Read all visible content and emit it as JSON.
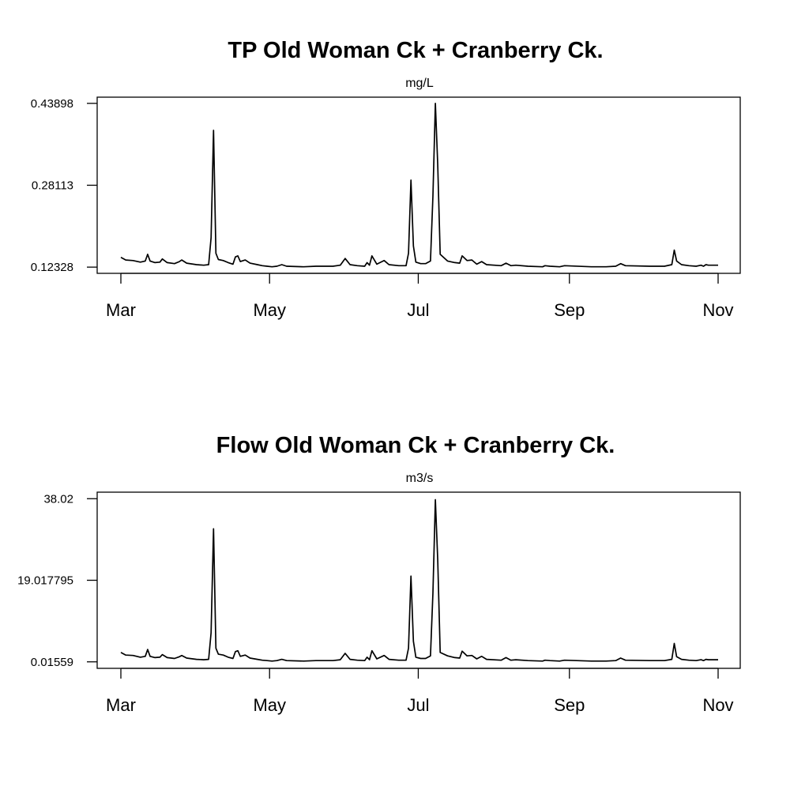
{
  "chart_data": [
    {
      "type": "line",
      "title": "TP Old Woman Ck + Cranberry Ck.",
      "subtitle": "mg/L",
      "xlabel": "",
      "ylabel": "",
      "x_axis": "date",
      "xlim": [
        "2020-03-01",
        "2020-11-01"
      ],
      "xticks": [
        {
          "date": "2020-03-01",
          "label": "Mar"
        },
        {
          "date": "2020-05-01",
          "label": "May"
        },
        {
          "date": "2020-07-01",
          "label": "Jul"
        },
        {
          "date": "2020-09-01",
          "label": "Sep"
        },
        {
          "date": "2020-11-01",
          "label": "Nov"
        }
      ],
      "yticks": [
        {
          "value": 0.12328,
          "label": "0.12328"
        },
        {
          "value": 0.28113,
          "label": "0.28113"
        },
        {
          "value": 0.43898,
          "label": "0.43898"
        }
      ],
      "ylim": [
        0.1113,
        0.4509
      ],
      "grid": false,
      "series": [
        {
          "color": "#000000",
          "points": [
            [
              "2020-03-01",
              0.142
            ],
            [
              "2020-03-03",
              0.137
            ],
            [
              "2020-03-06",
              0.136
            ],
            [
              "2020-03-09",
              0.133
            ],
            [
              "2020-03-11",
              0.135
            ],
            [
              "2020-03-12",
              0.148
            ],
            [
              "2020-03-13",
              0.135
            ],
            [
              "2020-03-15",
              0.132
            ],
            [
              "2020-03-17",
              0.133
            ],
            [
              "2020-03-18",
              0.139
            ],
            [
              "2020-03-20",
              0.132
            ],
            [
              "2020-03-23",
              0.13
            ],
            [
              "2020-03-25",
              0.134
            ],
            [
              "2020-03-26",
              0.137
            ],
            [
              "2020-03-28",
              0.131
            ],
            [
              "2020-04-01",
              0.128
            ],
            [
              "2020-04-04",
              0.127
            ],
            [
              "2020-04-06",
              0.128
            ],
            [
              "2020-04-07",
              0.18
            ],
            [
              "2020-04-08",
              0.387
            ],
            [
              "2020-04-09",
              0.15
            ],
            [
              "2020-04-10",
              0.138
            ],
            [
              "2020-04-12",
              0.136
            ],
            [
              "2020-04-14",
              0.132
            ],
            [
              "2020-04-16",
              0.129
            ],
            [
              "2020-04-17",
              0.143
            ],
            [
              "2020-04-18",
              0.145
            ],
            [
              "2020-04-19",
              0.134
            ],
            [
              "2020-04-21",
              0.137
            ],
            [
              "2020-04-23",
              0.131
            ],
            [
              "2020-04-26",
              0.128
            ],
            [
              "2020-04-28",
              0.126
            ],
            [
              "2020-04-30",
              0.125
            ],
            [
              "2020-05-02",
              0.124
            ],
            [
              "2020-05-04",
              0.125
            ],
            [
              "2020-05-06",
              0.128
            ],
            [
              "2020-05-08",
              0.125
            ],
            [
              "2020-05-15",
              0.124
            ],
            [
              "2020-05-20",
              0.125
            ],
            [
              "2020-05-27",
              0.125
            ],
            [
              "2020-05-30",
              0.127
            ],
            [
              "2020-06-01",
              0.14
            ],
            [
              "2020-06-03",
              0.128
            ],
            [
              "2020-06-06",
              0.126
            ],
            [
              "2020-06-09",
              0.125
            ],
            [
              "2020-06-10",
              0.132
            ],
            [
              "2020-06-11",
              0.127
            ],
            [
              "2020-06-12",
              0.145
            ],
            [
              "2020-06-14",
              0.129
            ],
            [
              "2020-06-17",
              0.136
            ],
            [
              "2020-06-19",
              0.128
            ],
            [
              "2020-06-23",
              0.126
            ],
            [
              "2020-06-26",
              0.126
            ],
            [
              "2020-06-27",
              0.15
            ],
            [
              "2020-06-28",
              0.291
            ],
            [
              "2020-06-29",
              0.164
            ],
            [
              "2020-06-30",
              0.133
            ],
            [
              "2020-07-02",
              0.13
            ],
            [
              "2020-07-04",
              0.13
            ],
            [
              "2020-07-06",
              0.135
            ],
            [
              "2020-07-07",
              0.26
            ],
            [
              "2020-07-08",
              0.439
            ],
            [
              "2020-07-09",
              0.32
            ],
            [
              "2020-07-10",
              0.148
            ],
            [
              "2020-07-13",
              0.135
            ],
            [
              "2020-07-16",
              0.132
            ],
            [
              "2020-07-18",
              0.131
            ],
            [
              "2020-07-19",
              0.145
            ],
            [
              "2020-07-21",
              0.136
            ],
            [
              "2020-07-23",
              0.137
            ],
            [
              "2020-07-25",
              0.129
            ],
            [
              "2020-07-27",
              0.134
            ],
            [
              "2020-07-29",
              0.128
            ],
            [
              "2020-08-04",
              0.126
            ],
            [
              "2020-08-06",
              0.131
            ],
            [
              "2020-08-08",
              0.126
            ],
            [
              "2020-08-10",
              0.127
            ],
            [
              "2020-08-15",
              0.125
            ],
            [
              "2020-08-21",
              0.124
            ],
            [
              "2020-08-22",
              0.126
            ],
            [
              "2020-08-24",
              0.125
            ],
            [
              "2020-08-28",
              0.124
            ],
            [
              "2020-08-30",
              0.126
            ],
            [
              "2020-09-10",
              0.124
            ],
            [
              "2020-09-16",
              0.124
            ],
            [
              "2020-09-20",
              0.125
            ],
            [
              "2020-09-22",
              0.13
            ],
            [
              "2020-09-24",
              0.126
            ],
            [
              "2020-10-04",
              0.125
            ],
            [
              "2020-10-10",
              0.125
            ],
            [
              "2020-10-13",
              0.128
            ],
            [
              "2020-10-14",
              0.156
            ],
            [
              "2020-10-15",
              0.135
            ],
            [
              "2020-10-17",
              0.128
            ],
            [
              "2020-10-20",
              0.126
            ],
            [
              "2020-10-23",
              0.125
            ],
            [
              "2020-10-25",
              0.127
            ],
            [
              "2020-10-26",
              0.125
            ],
            [
              "2020-10-27",
              0.128
            ],
            [
              "2020-10-28",
              0.127
            ],
            [
              "2020-11-01",
              0.127
            ]
          ]
        }
      ]
    },
    {
      "type": "line",
      "title": "Flow Old Woman Ck + Cranberry Ck.",
      "subtitle": "m3/s",
      "xlabel": "",
      "ylabel": "",
      "x_axis": "date",
      "xlim": [
        "2020-03-01",
        "2020-11-01"
      ],
      "xticks": [
        {
          "date": "2020-03-01",
          "label": "Mar"
        },
        {
          "date": "2020-05-01",
          "label": "May"
        },
        {
          "date": "2020-07-01",
          "label": "Jul"
        },
        {
          "date": "2020-09-01",
          "label": "Sep"
        },
        {
          "date": "2020-11-01",
          "label": "Nov"
        }
      ],
      "yticks": [
        {
          "value": 0.01559,
          "label": "0.01559"
        },
        {
          "value": 19.017795,
          "label": "19.017795"
        },
        {
          "value": 38.02,
          "label": "38.02"
        }
      ],
      "ylim": [
        -1.5,
        39.54
      ],
      "grid": false,
      "series": [
        {
          "color": "#000000",
          "points": [
            [
              "2020-03-01",
              2.2
            ],
            [
              "2020-03-03",
              1.6
            ],
            [
              "2020-03-06",
              1.5
            ],
            [
              "2020-03-09",
              1.1
            ],
            [
              "2020-03-11",
              1.3
            ],
            [
              "2020-03-12",
              2.9
            ],
            [
              "2020-03-13",
              1.3
            ],
            [
              "2020-03-15",
              1.0
            ],
            [
              "2020-03-17",
              1.1
            ],
            [
              "2020-03-18",
              1.7
            ],
            [
              "2020-03-20",
              1.0
            ],
            [
              "2020-03-23",
              0.8
            ],
            [
              "2020-03-25",
              1.2
            ],
            [
              "2020-03-26",
              1.5
            ],
            [
              "2020-03-28",
              0.9
            ],
            [
              "2020-04-01",
              0.6
            ],
            [
              "2020-04-04",
              0.5
            ],
            [
              "2020-04-06",
              0.6
            ],
            [
              "2020-04-07",
              6.8
            ],
            [
              "2020-04-08",
              31.0
            ],
            [
              "2020-04-09",
              3.2
            ],
            [
              "2020-04-10",
              1.8
            ],
            [
              "2020-04-12",
              1.6
            ],
            [
              "2020-04-14",
              1.1
            ],
            [
              "2020-04-16",
              0.8
            ],
            [
              "2020-04-17",
              2.4
            ],
            [
              "2020-04-18",
              2.6
            ],
            [
              "2020-04-19",
              1.3
            ],
            [
              "2020-04-21",
              1.6
            ],
            [
              "2020-04-23",
              0.9
            ],
            [
              "2020-04-26",
              0.6
            ],
            [
              "2020-04-28",
              0.4
            ],
            [
              "2020-04-30",
              0.3
            ],
            [
              "2020-05-02",
              0.2
            ],
            [
              "2020-05-04",
              0.3
            ],
            [
              "2020-05-06",
              0.6
            ],
            [
              "2020-05-08",
              0.3
            ],
            [
              "2020-05-15",
              0.2
            ],
            [
              "2020-05-20",
              0.3
            ],
            [
              "2020-05-27",
              0.3
            ],
            [
              "2020-05-30",
              0.5
            ],
            [
              "2020-06-01",
              2.0
            ],
            [
              "2020-06-03",
              0.6
            ],
            [
              "2020-06-06",
              0.4
            ],
            [
              "2020-06-09",
              0.3
            ],
            [
              "2020-06-10",
              1.1
            ],
            [
              "2020-06-11",
              0.5
            ],
            [
              "2020-06-12",
              2.6
            ],
            [
              "2020-06-14",
              0.7
            ],
            [
              "2020-06-17",
              1.5
            ],
            [
              "2020-06-19",
              0.6
            ],
            [
              "2020-06-23",
              0.4
            ],
            [
              "2020-06-26",
              0.4
            ],
            [
              "2020-06-27",
              3.2
            ],
            [
              "2020-06-28",
              20.0
            ],
            [
              "2020-06-29",
              4.8
            ],
            [
              "2020-06-30",
              1.1
            ],
            [
              "2020-07-02",
              0.8
            ],
            [
              "2020-07-04",
              0.8
            ],
            [
              "2020-07-06",
              1.4
            ],
            [
              "2020-07-07",
              16.0
            ],
            [
              "2020-07-08",
              37.8
            ],
            [
              "2020-07-09",
              23.7
            ],
            [
              "2020-07-10",
              2.2
            ],
            [
              "2020-07-13",
              1.4
            ],
            [
              "2020-07-16",
              1.0
            ],
            [
              "2020-07-18",
              0.9
            ],
            [
              "2020-07-19",
              2.5
            ],
            [
              "2020-07-21",
              1.4
            ],
            [
              "2020-07-23",
              1.5
            ],
            [
              "2020-07-25",
              0.7
            ],
            [
              "2020-07-27",
              1.3
            ],
            [
              "2020-07-29",
              0.6
            ],
            [
              "2020-08-04",
              0.4
            ],
            [
              "2020-08-06",
              1.0
            ],
            [
              "2020-08-08",
              0.4
            ],
            [
              "2020-08-10",
              0.5
            ],
            [
              "2020-08-15",
              0.3
            ],
            [
              "2020-08-21",
              0.2
            ],
            [
              "2020-08-22",
              0.4
            ],
            [
              "2020-08-24",
              0.3
            ],
            [
              "2020-08-28",
              0.2
            ],
            [
              "2020-08-30",
              0.4
            ],
            [
              "2020-09-10",
              0.2
            ],
            [
              "2020-09-16",
              0.2
            ],
            [
              "2020-09-20",
              0.3
            ],
            [
              "2020-09-22",
              0.9
            ],
            [
              "2020-09-24",
              0.4
            ],
            [
              "2020-10-04",
              0.3
            ],
            [
              "2020-10-10",
              0.3
            ],
            [
              "2020-10-13",
              0.6
            ],
            [
              "2020-10-14",
              4.3
            ],
            [
              "2020-10-15",
              1.2
            ],
            [
              "2020-10-17",
              0.6
            ],
            [
              "2020-10-20",
              0.4
            ],
            [
              "2020-10-23",
              0.3
            ],
            [
              "2020-10-25",
              0.5
            ],
            [
              "2020-10-26",
              0.3
            ],
            [
              "2020-10-27",
              0.6
            ],
            [
              "2020-10-28",
              0.5
            ],
            [
              "2020-11-01",
              0.5
            ]
          ]
        }
      ]
    }
  ]
}
